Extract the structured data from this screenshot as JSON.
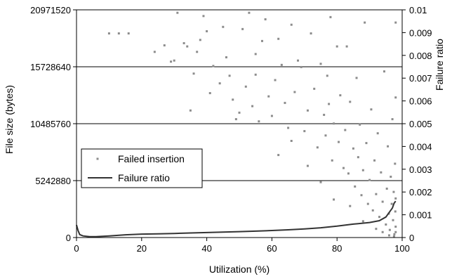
{
  "chart_data": {
    "type": "scatter",
    "xlabel": "Utilization (%)",
    "ylabel": "File size (bytes)",
    "y2label": "Failure ratio",
    "xlim": [
      0,
      100
    ],
    "ylim": [
      0,
      20971520
    ],
    "y2lim": [
      0,
      0.01
    ],
    "xticks": [
      "0",
      "20",
      "40",
      "60",
      "80",
      "100"
    ],
    "yticks": [
      "0",
      "5242880",
      "10485760",
      "15728640",
      "20971520"
    ],
    "y2ticks": [
      "0",
      "0.001",
      "0.002",
      "0.003",
      "0.004",
      "0.005",
      "0.006",
      "0.007",
      "0.008",
      "0.009",
      "0.01"
    ],
    "grid": "horizontal at left-axis ticks",
    "legend_position": "middle-left",
    "colors": {
      "scatter": "#8c8c8c",
      "line": "#333333",
      "grid": "#000000"
    },
    "series": [
      {
        "name": "Failed insertion",
        "axis": "left",
        "style": "points",
        "points": [
          [
            10,
            18800000
          ],
          [
            13,
            18800000
          ],
          [
            16,
            18800000
          ],
          [
            24,
            17100000
          ],
          [
            27,
            17700000
          ],
          [
            29,
            16200000
          ],
          [
            30,
            16300000
          ],
          [
            31,
            20700000
          ],
          [
            33,
            17900000
          ],
          [
            34,
            17600000
          ],
          [
            36,
            15100000
          ],
          [
            37,
            17100000
          ],
          [
            38,
            18200000
          ],
          [
            39,
            20400000
          ],
          [
            40,
            19000000
          ],
          [
            42,
            15800000
          ],
          [
            44,
            14200000
          ],
          [
            45,
            19400000
          ],
          [
            46,
            16600000
          ],
          [
            47,
            14900000
          ],
          [
            48,
            12700000
          ],
          [
            49,
            10900000
          ],
          [
            50,
            11500000
          ],
          [
            51,
            19200000
          ],
          [
            52,
            13900000
          ],
          [
            53,
            20700000
          ],
          [
            54,
            12100000
          ],
          [
            55,
            16900000
          ],
          [
            56,
            10700000
          ],
          [
            57,
            18100000
          ],
          [
            58,
            20100000
          ],
          [
            59,
            13000000
          ],
          [
            60,
            11200000
          ],
          [
            61,
            14500000
          ],
          [
            62,
            18300000
          ],
          [
            63,
            15900000
          ],
          [
            64,
            12400000
          ],
          [
            65,
            10100000
          ],
          [
            66,
            19600000
          ],
          [
            67,
            13400000
          ],
          [
            68,
            16300000
          ],
          [
            69,
            15700000
          ],
          [
            70,
            9800000
          ],
          [
            71,
            11700000
          ],
          [
            72,
            18800000
          ],
          [
            73,
            13700000
          ],
          [
            74,
            8300000
          ],
          [
            75,
            16000000
          ],
          [
            76,
            11300000
          ],
          [
            76.5,
            9400000
          ],
          [
            77,
            14900000
          ],
          [
            77.5,
            12300000
          ],
          [
            78,
            20300000
          ],
          [
            78.5,
            7100000
          ],
          [
            79,
            10500000
          ],
          [
            80,
            17600000
          ],
          [
            80.5,
            8800000
          ],
          [
            81,
            13100000
          ],
          [
            82,
            6400000
          ],
          [
            82.5,
            9900000
          ],
          [
            83,
            17600000
          ],
          [
            83.5,
            5900000
          ],
          [
            84,
            12500000
          ],
          [
            85,
            8200000
          ],
          [
            85.5,
            4700000
          ],
          [
            86,
            14700000
          ],
          [
            86.5,
            7400000
          ],
          [
            87,
            10400000
          ],
          [
            87.5,
            3900000
          ],
          [
            88,
            6200000
          ],
          [
            88.5,
            19800000
          ],
          [
            89,
            8700000
          ],
          [
            89.5,
            3100000
          ],
          [
            90,
            5300000
          ],
          [
            90.5,
            11800000
          ],
          [
            91,
            2500000
          ],
          [
            91.5,
            7100000
          ],
          [
            92,
            4000000
          ],
          [
            92.5,
            9600000
          ],
          [
            93,
            1900000
          ],
          [
            93.5,
            6000000
          ],
          [
            94,
            3300000
          ],
          [
            94.5,
            15300000
          ],
          [
            95,
            1200000
          ],
          [
            95.3,
            4500000
          ],
          [
            95.6,
            8400000
          ],
          [
            95.9,
            2200000
          ],
          [
            96.2,
            700000
          ],
          [
            96.5,
            5600000
          ],
          [
            96.8,
            3100000
          ],
          [
            97,
            10900000
          ],
          [
            97.2,
            1600000
          ],
          [
            97.4,
            4200000
          ],
          [
            97.6,
            300000
          ],
          [
            97.8,
            6800000
          ],
          [
            97.9,
            2400000
          ],
          [
            98,
            1000000
          ],
          [
            98,
            12900000
          ],
          [
            98,
            3600000
          ],
          [
            98,
            500000
          ],
          [
            35,
            11700000
          ],
          [
            41,
            13300000
          ],
          [
            55,
            15000000
          ],
          [
            62,
            7600000
          ],
          [
            66,
            8900000
          ],
          [
            71,
            6600000
          ],
          [
            75,
            5100000
          ],
          [
            79,
            3500000
          ],
          [
            84,
            2900000
          ],
          [
            88,
            1500000
          ],
          [
            92,
            800000
          ],
          [
            94,
            500000
          ],
          [
            96,
            200000
          ],
          [
            97.5,
            100000
          ],
          [
            98,
            19800000
          ]
        ]
      },
      {
        "name": "Failure ratio",
        "axis": "right",
        "style": "line",
        "points": [
          [
            0,
            0.00055
          ],
          [
            0.5,
            0.0003
          ],
          [
            1,
            0.00013
          ],
          [
            2,
            7e-05
          ],
          [
            4,
            4e-05
          ],
          [
            6,
            4e-05
          ],
          [
            10,
            7e-05
          ],
          [
            15,
            0.00012
          ],
          [
            20,
            0.00015
          ],
          [
            25,
            0.00016
          ],
          [
            30,
            0.00018
          ],
          [
            35,
            0.0002
          ],
          [
            40,
            0.00022
          ],
          [
            45,
            0.00024
          ],
          [
            50,
            0.00026
          ],
          [
            55,
            0.00028
          ],
          [
            60,
            0.00031
          ],
          [
            65,
            0.00034
          ],
          [
            70,
            0.00038
          ],
          [
            75,
            0.00043
          ],
          [
            80,
            0.0005
          ],
          [
            85,
            0.00059
          ],
          [
            90,
            0.00066
          ],
          [
            93,
            0.00074
          ],
          [
            95,
            0.0009
          ],
          [
            96,
            0.0011
          ],
          [
            97,
            0.0013
          ],
          [
            97.5,
            0.0015
          ],
          [
            98,
            0.0016
          ]
        ]
      }
    ]
  }
}
